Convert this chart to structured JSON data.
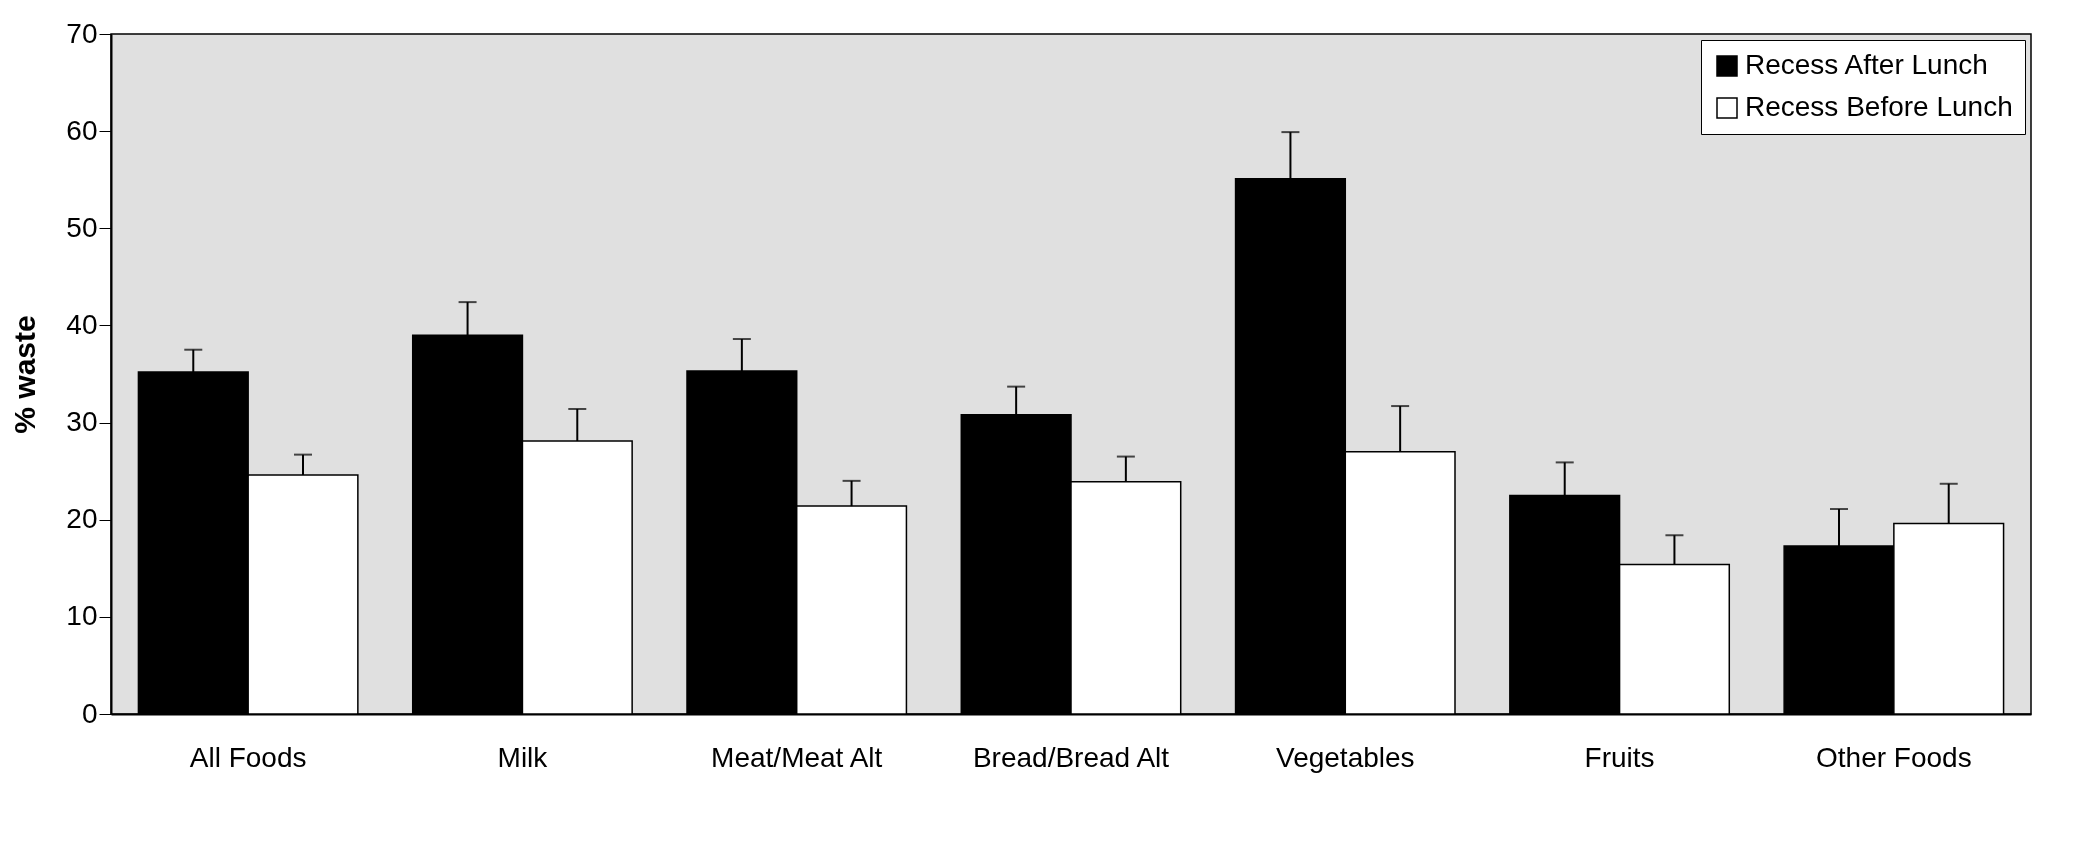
{
  "chart_data": {
    "type": "bar",
    "ylabel": "% waste",
    "categories": [
      "All Foods",
      "Milk",
      "Meat/Meat Alt",
      "Bread/Bread Alt",
      "Vegetables",
      "Fruits",
      "Other Foods"
    ],
    "series": [
      {
        "name": "Recess After Lunch",
        "color": "#000000",
        "values": [
          35.2,
          39.0,
          35.3,
          30.8,
          55.1,
          22.5,
          17.3
        ],
        "errors": [
          2.3,
          3.4,
          3.3,
          2.9,
          4.8,
          3.4,
          3.8
        ]
      },
      {
        "name": "Recess Before Lunch",
        "color": "#ffffff",
        "values": [
          24.6,
          28.1,
          21.4,
          23.9,
          27.0,
          15.4,
          19.6
        ],
        "errors": [
          2.1,
          3.3,
          2.6,
          2.6,
          4.7,
          3.0,
          4.1
        ]
      }
    ],
    "ylim": [
      0,
      70
    ],
    "yticks": [
      0,
      10,
      20,
      30,
      40,
      50,
      60,
      70
    ],
    "legend": "top right",
    "grid": false
  }
}
